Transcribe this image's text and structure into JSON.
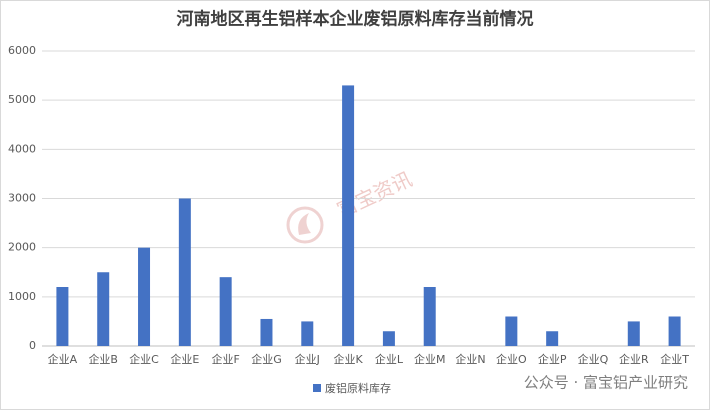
{
  "chart_data": {
    "type": "bar",
    "title": "河南地区再生铝样本企业废铝原料库存当前情况",
    "categories": [
      "企业A",
      "企业B",
      "企业C",
      "企业E",
      "企业F",
      "企业G",
      "企业J",
      "企业K",
      "企业L",
      "企业M",
      "企业N",
      "企业O",
      "企业P",
      "企业Q",
      "企业R",
      "企业T"
    ],
    "series": [
      {
        "name": "废铝原料库存",
        "color": "#4472c4",
        "values": [
          1200,
          1500,
          2000,
          3000,
          1400,
          550,
          500,
          5300,
          300,
          1200,
          0,
          600,
          300,
          0,
          500,
          600
        ]
      }
    ],
    "ylim": [
      0,
      6000
    ],
    "yticks": [
      0,
      1000,
      2000,
      3000,
      4000,
      5000,
      6000
    ],
    "grid": true,
    "legend": "bottom",
    "watermarks": [
      "富宝资讯",
      "公众号 · 富宝铝产业研究"
    ]
  }
}
